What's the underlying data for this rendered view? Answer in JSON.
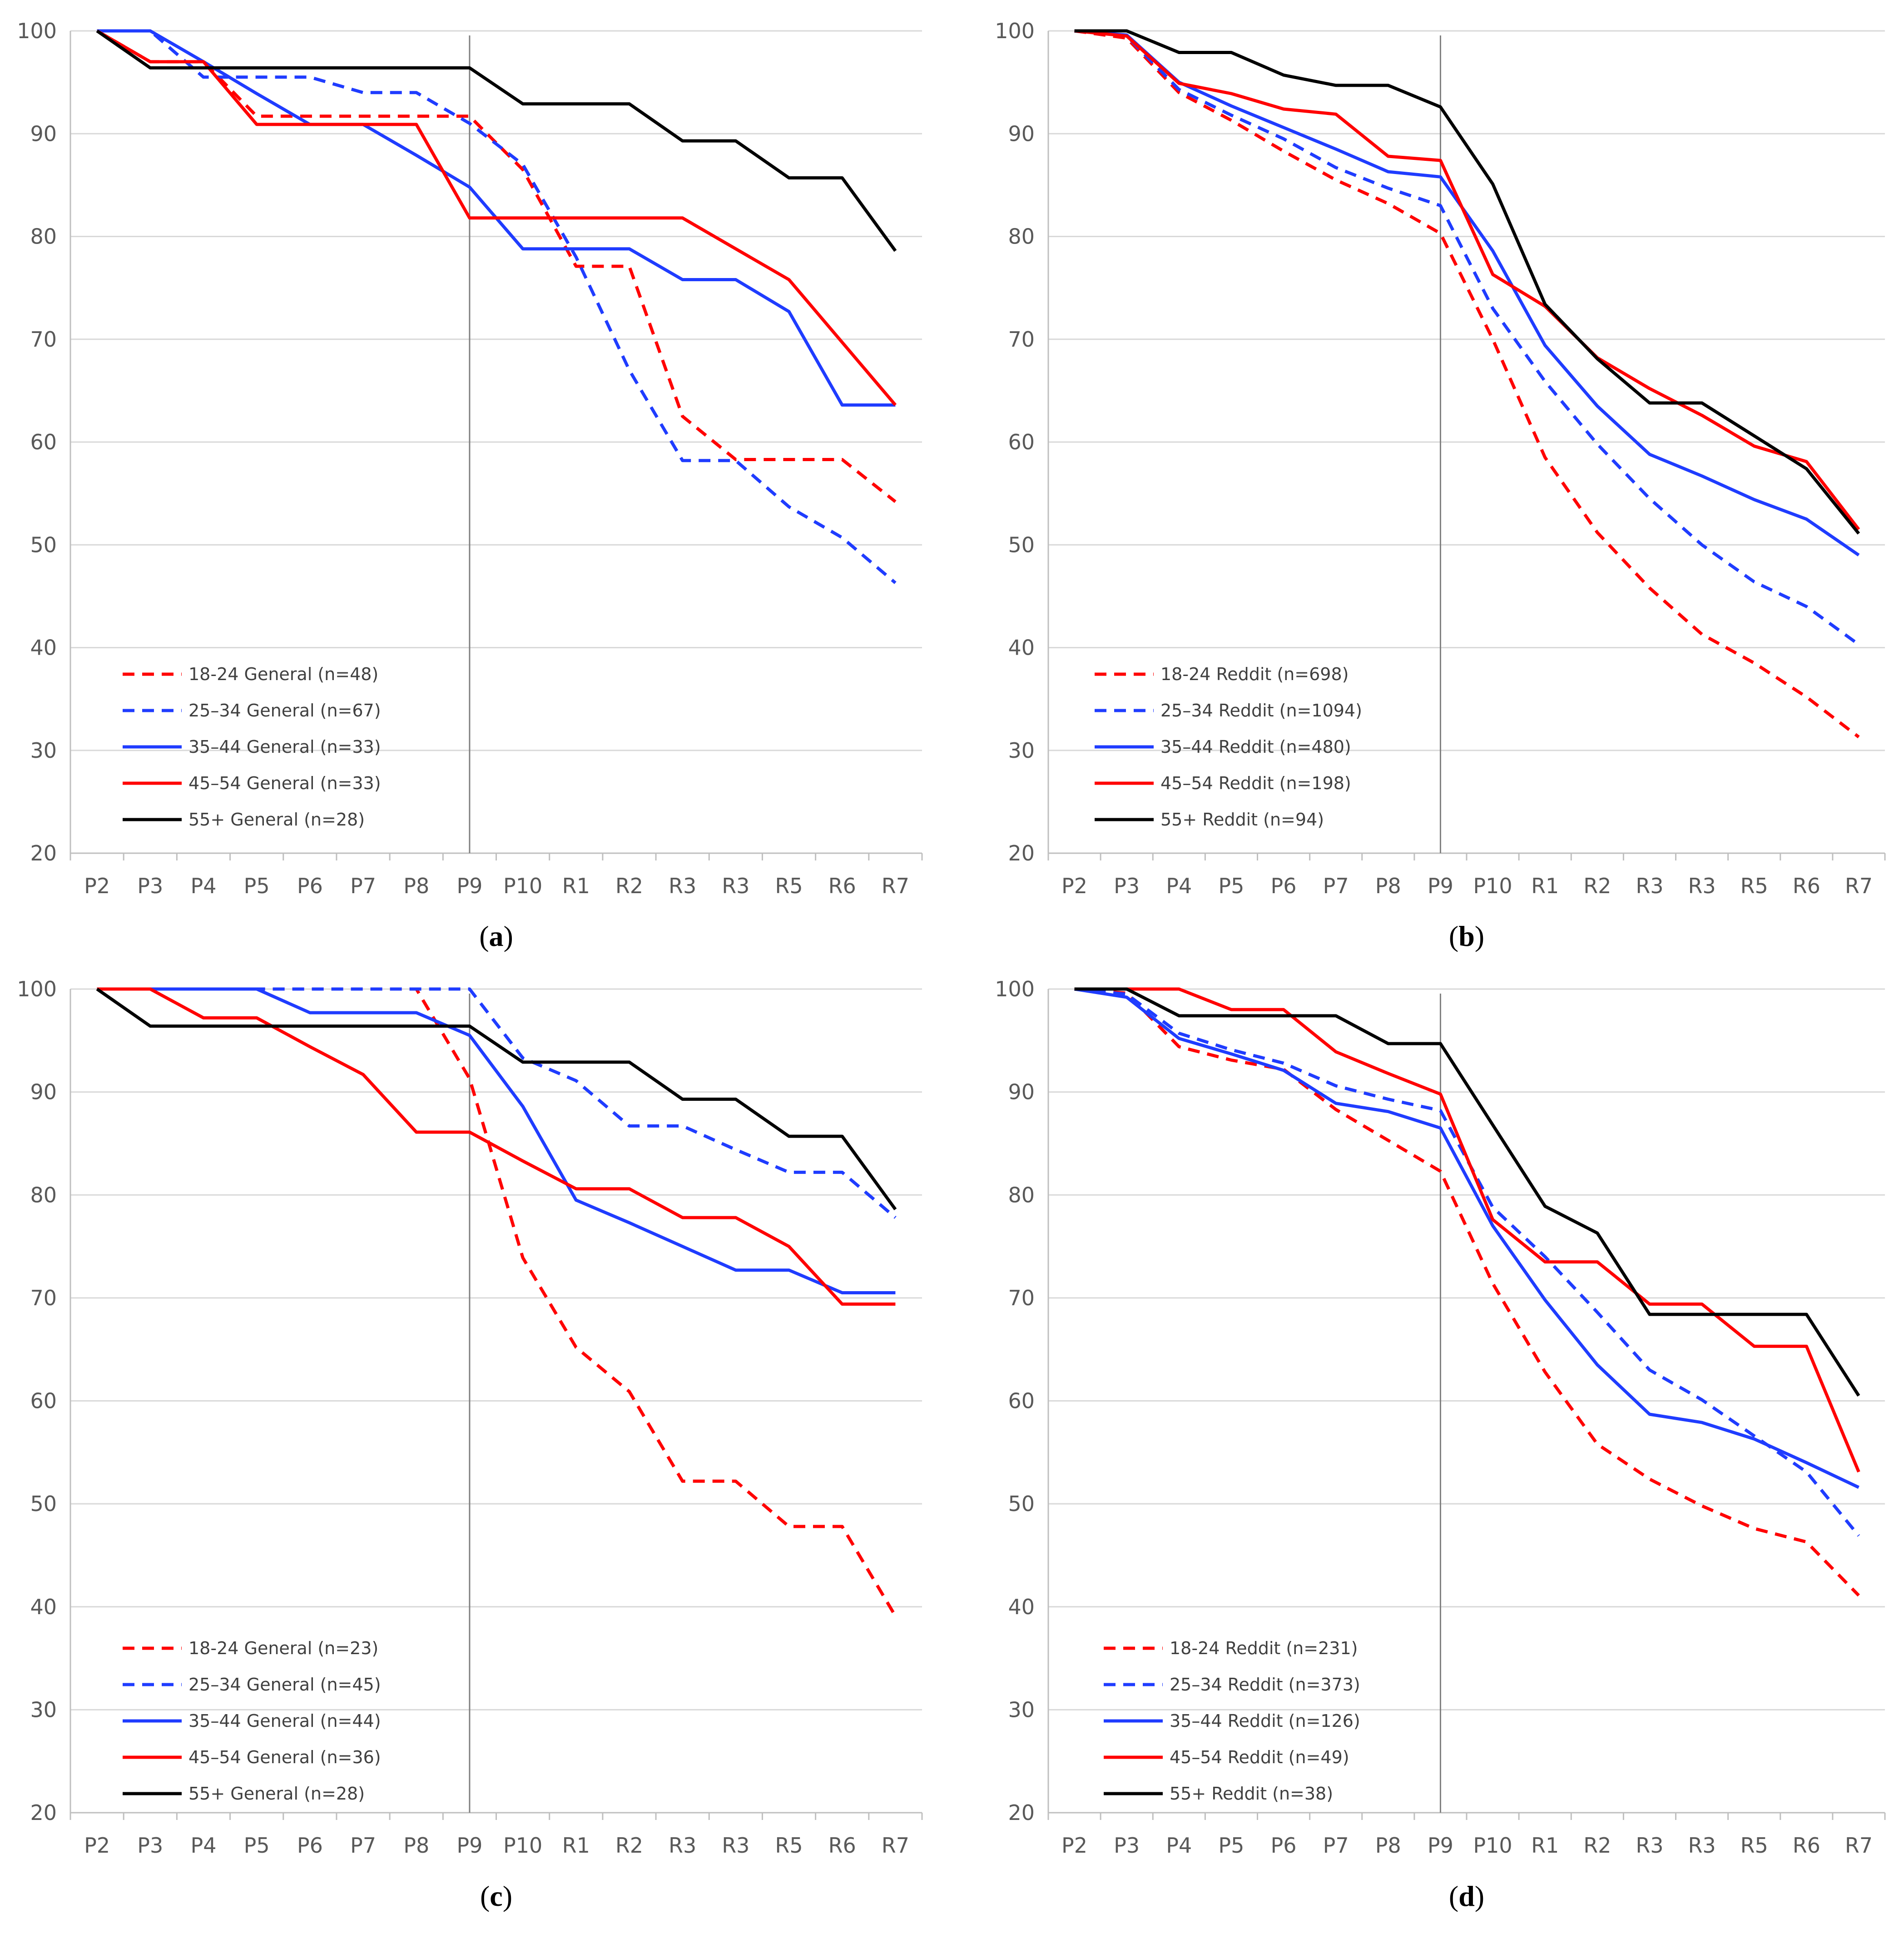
{
  "figure": {
    "colors": {
      "red": "#ff0000",
      "blue": "#1f3cff",
      "black": "#000000",
      "grid": "#d9d9d9",
      "axis": "#bfbfbf",
      "marker": "#808080"
    }
  },
  "chart_data": [
    {
      "type": "line",
      "caption_letter": "a",
      "categories": [
        "P2",
        "P3",
        "P4",
        "P5",
        "P6",
        "P7",
        "P8",
        "P9",
        "P10",
        "R1",
        "R2",
        "R3",
        "R3",
        "R5",
        "R6",
        "R7"
      ],
      "ylim": [
        20,
        100
      ],
      "yticks": [
        20,
        30,
        40,
        50,
        60,
        70,
        80,
        90,
        100
      ],
      "vertical_marker": "P9",
      "series": [
        {
          "name": "18-24 General (n=48)",
          "color": "#ff0000",
          "dashed": true,
          "values": [
            100,
            97,
            97,
            91.7,
            91.7,
            91.7,
            91.7,
            91.7,
            86.5,
            77.1,
            77.1,
            62.5,
            58.3,
            58.3,
            58.3,
            54.2
          ]
        },
        {
          "name": "25–34 General (n=67)",
          "color": "#1f3cff",
          "dashed": true,
          "values": [
            100,
            100,
            95.5,
            95.5,
            95.5,
            94,
            94,
            91,
            87,
            78,
            67,
            58.2,
            58.2,
            53.7,
            50.7,
            46.3
          ]
        },
        {
          "name": "35–44 General (n=33)",
          "color": "#1f3cff",
          "dashed": false,
          "values": [
            100,
            100,
            97,
            93.9,
            90.9,
            90.9,
            87.9,
            84.8,
            78.8,
            78.8,
            78.8,
            75.8,
            75.8,
            72.7,
            63.6,
            63.6
          ]
        },
        {
          "name": "45–54 General (n=33)",
          "color": "#ff0000",
          "dashed": false,
          "values": [
            100,
            97,
            97,
            90.9,
            90.9,
            90.9,
            90.9,
            81.8,
            81.8,
            81.8,
            81.8,
            81.8,
            78.8,
            75.8,
            69.7,
            63.6
          ]
        },
        {
          "name": "55+ General (n=28)",
          "color": "#000000",
          "dashed": false,
          "values": [
            100,
            96.4,
            96.4,
            96.4,
            96.4,
            96.4,
            96.4,
            96.4,
            92.9,
            92.9,
            92.9,
            89.3,
            89.3,
            85.7,
            85.7,
            78.6
          ]
        }
      ]
    },
    {
      "type": "line",
      "caption_letter": "b",
      "categories": [
        "P2",
        "P3",
        "P4",
        "P5",
        "P6",
        "P7",
        "P8",
        "P9",
        "P10",
        "R1",
        "R2",
        "R3",
        "R3",
        "R5",
        "R6",
        "R7"
      ],
      "ylim": [
        20,
        100
      ],
      "yticks": [
        20,
        30,
        40,
        50,
        60,
        70,
        80,
        90,
        100
      ],
      "vertical_marker": "P9",
      "series": [
        {
          "name": "18-24 Reddit (n=698)",
          "color": "#ff0000",
          "dashed": true,
          "values": [
            100,
            99.3,
            94,
            91.3,
            88.3,
            85.5,
            83.2,
            80.3,
            70,
            58.5,
            51.2,
            45.8,
            41.3,
            38.5,
            35.2,
            31.3
          ]
        },
        {
          "name": "25–34 Reddit (n=1094)",
          "color": "#1f3cff",
          "dashed": true,
          "values": [
            100,
            99.5,
            94.3,
            91.8,
            89.5,
            86.7,
            84.7,
            83,
            73,
            65.9,
            59.8,
            54.5,
            50,
            46.4,
            44,
            40.3
          ]
        },
        {
          "name": "35–44 Reddit (n=480)",
          "color": "#1f3cff",
          "dashed": false,
          "values": [
            100,
            99.6,
            95,
            92.7,
            90.6,
            88.5,
            86.3,
            85.8,
            78.6,
            69.4,
            63.5,
            58.8,
            56.7,
            54.4,
            52.5,
            49
          ]
        },
        {
          "name": "45–54 Reddit (n=198)",
          "color": "#ff0000",
          "dashed": false,
          "values": [
            100,
            99.5,
            94.9,
            93.9,
            92.4,
            91.9,
            87.8,
            87.4,
            76.3,
            73.2,
            68.2,
            65.2,
            62.6,
            59.6,
            58.1,
            51.5
          ]
        },
        {
          "name": "55+ Reddit (n=94)",
          "color": "#000000",
          "dashed": false,
          "values": [
            100,
            100,
            97.9,
            97.9,
            95.7,
            94.7,
            94.7,
            92.6,
            85.1,
            73.4,
            68.1,
            63.8,
            63.8,
            60.6,
            57.4,
            51.1
          ]
        }
      ]
    },
    {
      "type": "line",
      "caption_letter": "c",
      "categories": [
        "P2",
        "P3",
        "P4",
        "P5",
        "P6",
        "P7",
        "P8",
        "P9",
        "P10",
        "R1",
        "R2",
        "R3",
        "R3",
        "R5",
        "R6",
        "R7"
      ],
      "ylim": [
        20,
        100
      ],
      "yticks": [
        20,
        30,
        40,
        50,
        60,
        70,
        80,
        90,
        100
      ],
      "vertical_marker": "P9",
      "series": [
        {
          "name": "18-24 General (n=23)",
          "color": "#ff0000",
          "dashed": true,
          "values": [
            100,
            100,
            100,
            100,
            100,
            100,
            100,
            91.3,
            73.9,
            65.2,
            60.9,
            52.2,
            52.2,
            47.8,
            47.8,
            39.1
          ]
        },
        {
          "name": "25–34 General (n=45)",
          "color": "#1f3cff",
          "dashed": true,
          "values": [
            100,
            100,
            100,
            100,
            100,
            100,
            100,
            100,
            93.3,
            91.1,
            86.7,
            86.7,
            84.4,
            82.2,
            82.2,
            77.8
          ]
        },
        {
          "name": "35–44 General (n=44)",
          "color": "#1f3cff",
          "dashed": false,
          "values": [
            100,
            100,
            100,
            100,
            97.7,
            97.7,
            97.7,
            95.5,
            88.6,
            79.5,
            77.3,
            75,
            72.7,
            72.7,
            70.5,
            70.5
          ]
        },
        {
          "name": "45–54 General (n=36)",
          "color": "#ff0000",
          "dashed": false,
          "values": [
            100,
            100,
            97.2,
            97.2,
            94.4,
            91.7,
            86.1,
            86.1,
            83.3,
            80.6,
            80.6,
            77.8,
            77.8,
            75,
            69.4,
            69.4
          ]
        },
        {
          "name": "55+ General (n=28)",
          "color": "#000000",
          "dashed": false,
          "values": [
            100,
            96.4,
            96.4,
            96.4,
            96.4,
            96.4,
            96.4,
            96.4,
            92.9,
            92.9,
            92.9,
            89.3,
            89.3,
            85.7,
            85.7,
            78.6
          ]
        }
      ]
    },
    {
      "type": "line",
      "caption_letter": "d",
      "categories": [
        "P2",
        "P3",
        "P4",
        "P5",
        "P6",
        "P7",
        "P8",
        "P9",
        "P10",
        "R1",
        "R2",
        "R3",
        "R3",
        "R5",
        "R6",
        "R7"
      ],
      "ylim": [
        20,
        100
      ],
      "yticks": [
        20,
        30,
        40,
        50,
        60,
        70,
        80,
        90,
        100
      ],
      "vertical_marker": "P9",
      "series": [
        {
          "name": "18-24 Reddit (n=231)",
          "color": "#ff0000",
          "dashed": true,
          "values": [
            100,
            99.6,
            94.4,
            93.1,
            92.2,
            88.3,
            85.3,
            82.3,
            71.4,
            62.8,
            55.8,
            52.4,
            49.8,
            47.6,
            46.3,
            41.1
          ]
        },
        {
          "name": "25–34 Reddit (n=373)",
          "color": "#1f3cff",
          "dashed": true,
          "values": [
            100,
            99.5,
            95.7,
            94.1,
            92.8,
            90.6,
            89.3,
            88.2,
            78.8,
            74,
            68.6,
            63,
            60.1,
            56.6,
            53.1,
            46.9
          ]
        },
        {
          "name": "35–44 Reddit (n=126)",
          "color": "#1f3cff",
          "dashed": false,
          "values": [
            100,
            99.2,
            95.2,
            93.7,
            92.1,
            88.9,
            88.1,
            86.5,
            77,
            69.8,
            63.5,
            58.7,
            57.9,
            56.3,
            54,
            51.6
          ]
        },
        {
          "name": "45–54 Reddit (n=49)",
          "color": "#ff0000",
          "dashed": false,
          "values": [
            100,
            100,
            100,
            98,
            98,
            93.9,
            91.8,
            89.8,
            77.6,
            73.5,
            73.5,
            69.4,
            69.4,
            65.3,
            65.3,
            53.1
          ]
        },
        {
          "name": "55+ Reddit (n=38)",
          "color": "#000000",
          "dashed": false,
          "values": [
            100,
            100,
            97.4,
            97.4,
            97.4,
            97.4,
            94.7,
            94.7,
            86.8,
            78.9,
            76.3,
            68.4,
            68.4,
            68.4,
            68.4,
            60.5
          ]
        }
      ]
    }
  ]
}
